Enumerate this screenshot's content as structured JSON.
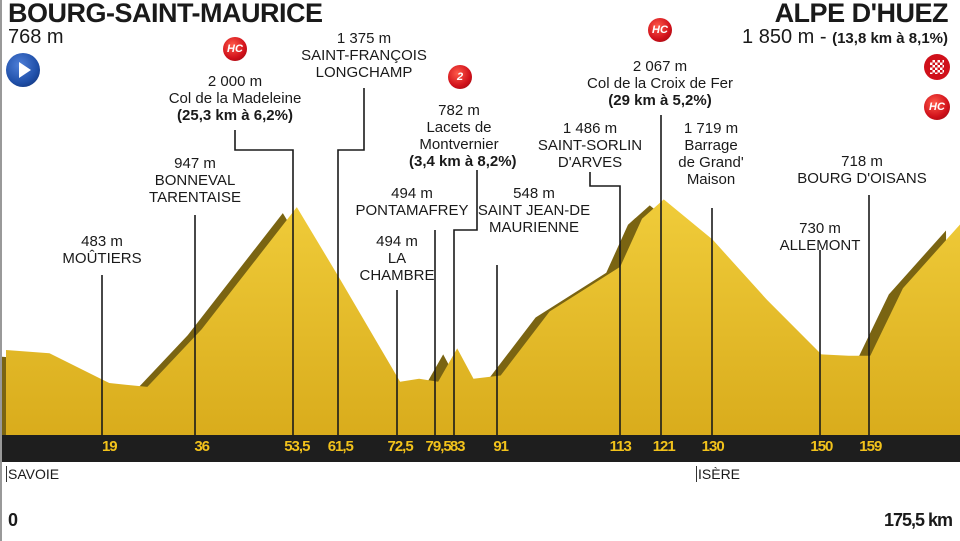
{
  "start": {
    "name": "BOURG-SAINT-MAURICE",
    "altitude": "768 m",
    "icon": "start-arrow-icon"
  },
  "finish": {
    "name": "ALPE D'HUEZ",
    "altitude": "1 850 m -",
    "climb": "(13,8 km à 8,1%)",
    "icons": [
      "finish-flag-icon",
      "hc-badge-icon"
    ],
    "category": "HC"
  },
  "waypoints": [
    {
      "alt": "483 m",
      "name": "MOÛTIERS",
      "km": "19"
    },
    {
      "alt": "947 m",
      "name": "BONNEVAL TARENTAISE",
      "km": "36"
    },
    {
      "alt": "2 000 m",
      "name": "Col de la Madeleine",
      "climb": "(25,3 km à 6,2%)",
      "category": "HC",
      "km": "53,5"
    },
    {
      "alt": "1 375 m",
      "name": "SAINT-FRANÇOIS LONGCHAMP",
      "km": "61,5"
    },
    {
      "alt": "494 m",
      "name": "LA CHAMBRE",
      "km": "72,5"
    },
    {
      "alt": "494 m",
      "name": "PONTAMAFREY",
      "km": "79,5"
    },
    {
      "alt": "782 m",
      "name": "Lacets de Montvernier",
      "climb": "(3,4 km à 8,2%)",
      "category": "2",
      "km": "83"
    },
    {
      "alt": "548 m",
      "name": "SAINT JEAN-DE MAURIENNE",
      "km": "91"
    },
    {
      "alt": "1 486 m",
      "name": "SAINT-SORLIN D'ARVES",
      "km": "113"
    },
    {
      "alt": "2 067 m",
      "name": "Col de la Croix de Fer",
      "climb": "(29 km à 5,2%)",
      "category": "HC",
      "km": "121"
    },
    {
      "alt": "1 719 m",
      "name": "Barrage de Grand' Maison",
      "km": "130"
    },
    {
      "alt": "730 m",
      "name": "ALLEMONT",
      "km": "150"
    },
    {
      "alt": "718 m",
      "name": "BOURG D'OISANS",
      "km": "159"
    }
  ],
  "regions": [
    "SAVOIE",
    "ISÈRE"
  ],
  "axis": {
    "start_label": "0",
    "end_label": "175,5 km"
  },
  "colors": {
    "terrain": "#e9c229",
    "terrain_shadow": "#7a6412",
    "band": "#1e1e1e",
    "km_text": "#f2c21b",
    "badge": "#d0101a",
    "start_icon": "#1f4fa8"
  },
  "chart_data": {
    "type": "area",
    "xlabel": "",
    "ylabel": "",
    "xlim": [
      0,
      175.5
    ],
    "x": [
      0,
      8,
      19,
      26,
      36,
      53.5,
      61.5,
      72.5,
      76,
      79.5,
      83,
      86,
      91,
      100,
      113,
      117,
      121,
      130,
      140,
      150,
      155,
      159,
      165,
      175.5
    ],
    "y": [
      768,
      740,
      483,
      450,
      947,
      2000,
      1375,
      494,
      520,
      494,
      782,
      520,
      548,
      1100,
      1486,
      1900,
      2067,
      1719,
      1200,
      730,
      718,
      718,
      1300,
      1850
    ]
  }
}
